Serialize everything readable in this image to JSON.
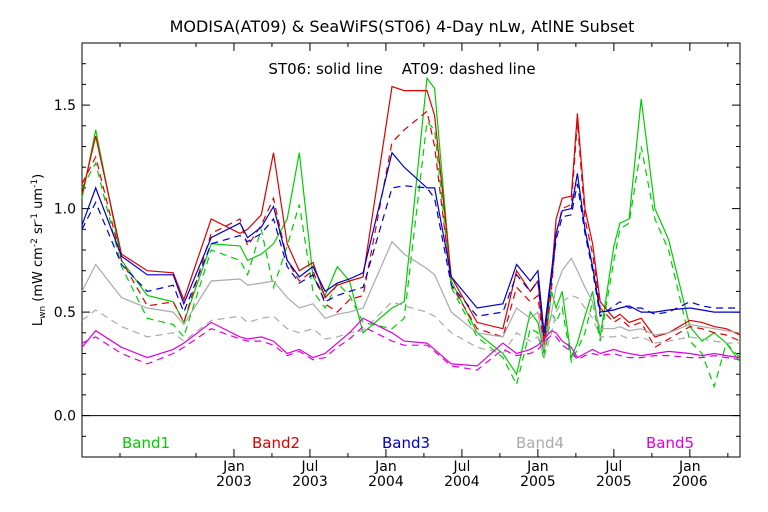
{
  "chart_data": {
    "type": "line",
    "title": "MODISA(AT09) & SeaWiFS(ST06) 4-Day nLw, AtlNE Subset",
    "annotation": "ST06: solid line    AT09: dashed line",
    "ylabel": {
      "main": "L",
      "sub": "wn",
      "units_open": " (mW cm",
      "sup1": "-2",
      "mid1": " sr",
      "sup2": "-1",
      "mid2": " um",
      "sup3": "-1",
      "units_close": ")"
    },
    "xlim": [
      2002.0,
      2006.33
    ],
    "ylim": [
      -0.2,
      1.8
    ],
    "yticks": [
      "0.0",
      "0.5",
      "1.0",
      "1.5"
    ],
    "ytick_values": [
      0.0,
      0.5,
      1.0,
      1.5
    ],
    "xticks": [
      {
        "value": 2003.0,
        "month": "Jan",
        "year": "2003"
      },
      {
        "value": 2003.5,
        "month": "Jul",
        "year": "2003"
      },
      {
        "value": 2004.0,
        "month": "Jan",
        "year": "2004"
      },
      {
        "value": 2004.5,
        "month": "Jul",
        "year": "2004"
      },
      {
        "value": 2005.0,
        "month": "Jan",
        "year": "2005"
      },
      {
        "value": 2005.5,
        "month": "Jul",
        "year": "2005"
      },
      {
        "value": 2006.0,
        "month": "Jan",
        "year": "2006"
      }
    ],
    "zero_line": 0.0,
    "legend_position": "bottom",
    "series": [
      {
        "name": "Band1",
        "color": "#00cc00",
        "style": "solid",
        "x": [
          2002.0,
          2002.09,
          2002.26,
          2002.43,
          2002.6,
          2002.67,
          2002.85,
          2003.04,
          2003.09,
          2003.18,
          2003.26,
          2003.35,
          2003.43,
          2003.52,
          2003.6,
          2003.68,
          2003.76,
          2003.85,
          2004.04,
          2004.12,
          2004.27,
          2004.32,
          2004.43,
          2004.6,
          2004.77,
          2004.86,
          2004.95,
          2005.0,
          2005.04,
          2005.09,
          2005.12,
          2005.16,
          2005.22,
          2005.26,
          2005.31,
          2005.36,
          2005.41,
          2005.5,
          2005.54,
          2005.6,
          2005.68,
          2005.77,
          2005.86,
          2006.0,
          2006.08,
          2006.16,
          2006.24,
          2006.33
        ],
        "y": [
          1.05,
          1.38,
          0.75,
          0.58,
          0.55,
          0.45,
          0.83,
          0.82,
          0.75,
          0.78,
          0.83,
          0.95,
          1.27,
          0.67,
          0.58,
          0.72,
          0.65,
          0.4,
          0.52,
          0.55,
          1.63,
          1.58,
          0.65,
          0.4,
          0.3,
          0.2,
          0.5,
          0.45,
          0.3,
          0.6,
          0.52,
          0.6,
          0.28,
          0.35,
          0.48,
          0.6,
          0.38,
          0.82,
          0.93,
          0.95,
          1.53,
          1.0,
          0.85,
          0.43,
          0.36,
          0.4,
          0.35,
          0.26
        ]
      },
      {
        "name": "Band1",
        "color": "#00cc00",
        "style": "dashed",
        "x": [
          2002.0,
          2002.09,
          2002.26,
          2002.43,
          2002.6,
          2002.67,
          2002.85,
          2003.04,
          2003.09,
          2003.18,
          2003.26,
          2003.35,
          2003.43,
          2003.52,
          2003.6,
          2003.68,
          2003.76,
          2003.85,
          2004.04,
          2004.12,
          2004.27,
          2004.32,
          2004.43,
          2004.6,
          2004.77,
          2004.86,
          2004.95,
          2005.0,
          2005.04,
          2005.09,
          2005.12,
          2005.16,
          2005.22,
          2005.26,
          2005.31,
          2005.36,
          2005.41,
          2005.5,
          2005.54,
          2005.6,
          2005.68,
          2005.77,
          2005.86,
          2006.0,
          2006.08,
          2006.16,
          2006.24,
          2006.33
        ],
        "y": [
          1.1,
          1.22,
          0.72,
          0.47,
          0.44,
          0.38,
          0.8,
          0.75,
          0.68,
          0.9,
          0.62,
          0.82,
          1.02,
          0.6,
          0.52,
          0.64,
          0.58,
          0.45,
          0.42,
          0.47,
          1.42,
          1.38,
          0.62,
          0.38,
          0.28,
          0.15,
          0.42,
          0.4,
          0.27,
          0.5,
          0.45,
          0.52,
          0.26,
          0.32,
          0.4,
          0.55,
          0.36,
          0.75,
          0.9,
          0.93,
          1.3,
          0.95,
          0.8,
          0.36,
          0.3,
          0.14,
          0.35,
          0.28
        ]
      },
      {
        "name": "Band2",
        "color": "#dd0000",
        "style": "solid",
        "x": [
          2002.0,
          2002.09,
          2002.26,
          2002.43,
          2002.6,
          2002.67,
          2002.85,
          2003.04,
          2003.09,
          2003.18,
          2003.26,
          2003.35,
          2003.43,
          2003.52,
          2003.6,
          2003.68,
          2003.76,
          2003.85,
          2004.04,
          2004.12,
          2004.27,
          2004.32,
          2004.43,
          2004.6,
          2004.77,
          2004.86,
          2004.95,
          2005.0,
          2005.04,
          2005.09,
          2005.12,
          2005.16,
          2005.22,
          2005.26,
          2005.31,
          2005.36,
          2005.41,
          2005.5,
          2005.54,
          2005.6,
          2005.68,
          2005.77,
          2005.86,
          2006.0,
          2006.08,
          2006.16,
          2006.24,
          2006.33
        ],
        "y": [
          1.07,
          1.35,
          0.78,
          0.7,
          0.69,
          0.56,
          0.95,
          0.88,
          0.9,
          0.97,
          1.27,
          0.83,
          0.7,
          0.74,
          0.57,
          0.63,
          0.65,
          0.67,
          1.59,
          1.57,
          1.57,
          1.45,
          0.67,
          0.45,
          0.42,
          0.7,
          0.6,
          0.65,
          0.35,
          0.68,
          0.95,
          1.05,
          1.06,
          1.46,
          1.0,
          0.83,
          0.55,
          0.47,
          0.49,
          0.45,
          0.47,
          0.38,
          0.4,
          0.46,
          0.45,
          0.43,
          0.42,
          0.39
        ]
      },
      {
        "name": "Band2",
        "color": "#dd0000",
        "style": "dashed",
        "x": [
          2002.0,
          2002.09,
          2002.26,
          2002.43,
          2002.6,
          2002.67,
          2002.85,
          2003.04,
          2003.09,
          2003.18,
          2003.26,
          2003.35,
          2003.43,
          2003.52,
          2003.6,
          2003.68,
          2003.76,
          2003.85,
          2004.04,
          2004.12,
          2004.27,
          2004.32,
          2004.43,
          2004.6,
          2004.77,
          2004.86,
          2004.95,
          2005.0,
          2005.04,
          2005.09,
          2005.12,
          2005.16,
          2005.22,
          2005.26,
          2005.31,
          2005.36,
          2005.41,
          2005.5,
          2005.54,
          2005.6,
          2005.68,
          2005.77,
          2005.86,
          2006.0,
          2006.08,
          2006.16,
          2006.24,
          2006.33
        ],
        "y": [
          1.12,
          1.25,
          0.75,
          0.53,
          0.55,
          0.45,
          0.88,
          0.95,
          0.82,
          0.92,
          1.05,
          0.75,
          0.65,
          0.7,
          0.54,
          0.5,
          0.56,
          0.58,
          1.32,
          1.38,
          1.47,
          1.3,
          0.63,
          0.42,
          0.38,
          0.62,
          0.55,
          0.58,
          0.32,
          0.62,
          0.88,
          1.0,
          1.02,
          1.42,
          0.95,
          0.78,
          0.52,
          0.45,
          0.47,
          0.43,
          0.45,
          0.33,
          0.37,
          0.43,
          0.42,
          0.4,
          0.39,
          0.36
        ]
      },
      {
        "name": "Band3",
        "color": "#0000cc",
        "style": "solid",
        "x": [
          2002.0,
          2002.09,
          2002.26,
          2002.43,
          2002.6,
          2002.67,
          2002.85,
          2003.04,
          2003.09,
          2003.18,
          2003.26,
          2003.35,
          2003.43,
          2003.52,
          2003.6,
          2003.68,
          2003.76,
          2003.85,
          2004.04,
          2004.12,
          2004.27,
          2004.32,
          2004.43,
          2004.6,
          2004.77,
          2004.86,
          2004.95,
          2005.0,
          2005.04,
          2005.09,
          2005.12,
          2005.16,
          2005.22,
          2005.26,
          2005.31,
          2005.36,
          2005.41,
          2005.5,
          2005.54,
          2005.6,
          2005.68,
          2005.77,
          2005.86,
          2006.0,
          2006.08,
          2006.16,
          2006.24,
          2006.33
        ],
        "y": [
          0.92,
          1.1,
          0.77,
          0.68,
          0.68,
          0.54,
          0.86,
          0.93,
          0.86,
          0.91,
          1.01,
          0.75,
          0.67,
          0.72,
          0.6,
          0.64,
          0.66,
          0.69,
          1.27,
          1.2,
          1.1,
          1.1,
          0.67,
          0.52,
          0.54,
          0.73,
          0.65,
          0.7,
          0.4,
          0.7,
          0.88,
          0.99,
          1.0,
          1.17,
          0.9,
          0.72,
          0.5,
          0.51,
          0.52,
          0.53,
          0.5,
          0.5,
          0.51,
          0.52,
          0.51,
          0.5,
          0.5,
          0.5
        ]
      },
      {
        "name": "Band3",
        "color": "#0000cc",
        "style": "dashed",
        "x": [
          2002.0,
          2002.09,
          2002.26,
          2002.43,
          2002.6,
          2002.67,
          2002.85,
          2003.04,
          2003.09,
          2003.18,
          2003.26,
          2003.35,
          2003.43,
          2003.52,
          2003.6,
          2003.68,
          2003.76,
          2003.85,
          2004.04,
          2004.12,
          2004.27,
          2004.32,
          2004.43,
          2004.6,
          2004.77,
          2004.86,
          2004.95,
          2005.0,
          2005.04,
          2005.09,
          2005.12,
          2005.16,
          2005.22,
          2005.26,
          2005.31,
          2005.36,
          2005.41,
          2005.5,
          2005.54,
          2005.6,
          2005.68,
          2005.77,
          2005.86,
          2006.0,
          2006.08,
          2006.16,
          2006.24,
          2006.33
        ],
        "y": [
          0.9,
          1.03,
          0.73,
          0.6,
          0.63,
          0.5,
          0.83,
          0.87,
          0.84,
          0.88,
          0.95,
          0.72,
          0.64,
          0.68,
          0.55,
          0.58,
          0.6,
          0.62,
          1.1,
          1.11,
          1.1,
          1.05,
          0.63,
          0.48,
          0.5,
          0.68,
          0.6,
          0.65,
          0.38,
          0.66,
          0.85,
          0.96,
          0.97,
          1.12,
          0.88,
          0.7,
          0.48,
          0.53,
          0.55,
          0.52,
          0.52,
          0.49,
          0.5,
          0.55,
          0.53,
          0.52,
          0.52,
          0.52
        ]
      },
      {
        "name": "Band4",
        "color": "#aaaaaa",
        "style": "solid",
        "x": [
          2002.0,
          2002.09,
          2002.26,
          2002.43,
          2002.6,
          2002.67,
          2002.85,
          2003.04,
          2003.09,
          2003.18,
          2003.26,
          2003.35,
          2003.43,
          2003.52,
          2003.6,
          2003.68,
          2003.76,
          2003.85,
          2004.04,
          2004.12,
          2004.27,
          2004.32,
          2004.43,
          2004.6,
          2004.77,
          2004.86,
          2004.95,
          2005.0,
          2005.04,
          2005.09,
          2005.12,
          2005.16,
          2005.22,
          2005.26,
          2005.31,
          2005.36,
          2005.41,
          2005.5,
          2005.54,
          2005.6,
          2005.68,
          2005.77,
          2005.86,
          2006.0,
          2006.08,
          2006.16,
          2006.24,
          2006.33
        ],
        "y": [
          0.6,
          0.73,
          0.57,
          0.52,
          0.5,
          0.44,
          0.65,
          0.66,
          0.63,
          0.64,
          0.65,
          0.57,
          0.52,
          0.54,
          0.47,
          0.49,
          0.5,
          0.52,
          0.84,
          0.78,
          0.71,
          0.68,
          0.5,
          0.4,
          0.38,
          0.52,
          0.47,
          0.5,
          0.32,
          0.5,
          0.62,
          0.7,
          0.76,
          0.7,
          0.62,
          0.55,
          0.42,
          0.42,
          0.43,
          0.41,
          0.42,
          0.39,
          0.4,
          0.44,
          0.43,
          0.42,
          0.41,
          0.4
        ]
      },
      {
        "name": "Band4",
        "color": "#aaaaaa",
        "style": "dashed",
        "x": [
          2002.0,
          2002.09,
          2002.26,
          2002.43,
          2002.6,
          2002.67,
          2002.85,
          2003.04,
          2003.09,
          2003.18,
          2003.26,
          2003.35,
          2003.43,
          2003.52,
          2003.6,
          2003.68,
          2003.76,
          2003.85,
          2004.04,
          2004.12,
          2004.27,
          2004.32,
          2004.43,
          2004.6,
          2004.77,
          2004.86,
          2004.95,
          2005.0,
          2005.04,
          2005.09,
          2005.12,
          2005.16,
          2005.22,
          2005.26,
          2005.31,
          2005.36,
          2005.41,
          2005.5,
          2005.54,
          2005.6,
          2005.68,
          2005.77,
          2005.86,
          2006.0,
          2006.08,
          2006.16,
          2006.24,
          2006.33
        ],
        "y": [
          0.46,
          0.51,
          0.43,
          0.38,
          0.4,
          0.36,
          0.46,
          0.48,
          0.45,
          0.47,
          0.48,
          0.42,
          0.4,
          0.42,
          0.37,
          0.38,
          0.4,
          0.41,
          0.55,
          0.53,
          0.5,
          0.48,
          0.4,
          0.33,
          0.3,
          0.4,
          0.36,
          0.38,
          0.28,
          0.4,
          0.5,
          0.55,
          0.58,
          0.57,
          0.52,
          0.47,
          0.38,
          0.38,
          0.39,
          0.37,
          0.38,
          0.35,
          0.36,
          0.38,
          0.37,
          0.36,
          0.35,
          0.35
        ]
      },
      {
        "name": "Band5",
        "color": "#dd00dd",
        "style": "solid",
        "x": [
          2002.0,
          2002.09,
          2002.26,
          2002.43,
          2002.6,
          2002.67,
          2002.85,
          2003.04,
          2003.09,
          2003.18,
          2003.26,
          2003.35,
          2003.43,
          2003.52,
          2003.6,
          2003.68,
          2003.76,
          2003.85,
          2004.04,
          2004.12,
          2004.27,
          2004.32,
          2004.43,
          2004.6,
          2004.77,
          2004.86,
          2004.95,
          2005.0,
          2005.04,
          2005.09,
          2005.12,
          2005.16,
          2005.22,
          2005.26,
          2005.31,
          2005.36,
          2005.41,
          2005.5,
          2005.54,
          2005.6,
          2005.68,
          2005.77,
          2005.86,
          2006.0,
          2006.08,
          2006.16,
          2006.24,
          2006.33
        ],
        "y": [
          0.33,
          0.41,
          0.33,
          0.28,
          0.32,
          0.35,
          0.45,
          0.38,
          0.37,
          0.38,
          0.36,
          0.3,
          0.32,
          0.28,
          0.3,
          0.35,
          0.4,
          0.47,
          0.4,
          0.36,
          0.35,
          0.32,
          0.25,
          0.24,
          0.35,
          0.3,
          0.32,
          0.34,
          0.37,
          0.41,
          0.4,
          0.36,
          0.33,
          0.28,
          0.3,
          0.32,
          0.3,
          0.32,
          0.31,
          0.3,
          0.29,
          0.3,
          0.31,
          0.3,
          0.29,
          0.3,
          0.29,
          0.28
        ]
      },
      {
        "name": "Band5",
        "color": "#dd00dd",
        "style": "dashed",
        "x": [
          2002.0,
          2002.09,
          2002.26,
          2002.43,
          2002.6,
          2002.67,
          2002.85,
          2003.04,
          2003.09,
          2003.18,
          2003.26,
          2003.35,
          2003.43,
          2003.52,
          2003.6,
          2003.68,
          2003.76,
          2003.85,
          2004.04,
          2004.12,
          2004.27,
          2004.32,
          2004.43,
          2004.6,
          2004.77,
          2004.86,
          2004.95,
          2005.0,
          2005.04,
          2005.09,
          2005.12,
          2005.16,
          2005.22,
          2005.26,
          2005.31,
          2005.36,
          2005.41,
          2005.5,
          2005.54,
          2005.6,
          2005.68,
          2005.77,
          2005.86,
          2006.0,
          2006.08,
          2006.16,
          2006.24,
          2006.33
        ],
        "y": [
          0.35,
          0.38,
          0.3,
          0.25,
          0.3,
          0.33,
          0.42,
          0.37,
          0.36,
          0.36,
          0.34,
          0.29,
          0.31,
          0.27,
          0.28,
          0.33,
          0.37,
          0.43,
          0.36,
          0.34,
          0.34,
          0.31,
          0.24,
          0.22,
          0.32,
          0.29,
          0.3,
          0.32,
          0.35,
          0.39,
          0.38,
          0.34,
          0.31,
          0.27,
          0.29,
          0.3,
          0.29,
          0.3,
          0.29,
          0.28,
          0.28,
          0.29,
          0.29,
          0.28,
          0.28,
          0.29,
          0.28,
          0.27
        ]
      }
    ],
    "legend": [
      {
        "name": "Band1",
        "color": "#00cc00"
      },
      {
        "name": "Band2",
        "color": "#dd0000"
      },
      {
        "name": "Band3",
        "color": "#0000cc"
      },
      {
        "name": "Band4",
        "color": "#aaaaaa"
      },
      {
        "name": "Band5",
        "color": "#dd00dd"
      }
    ]
  }
}
